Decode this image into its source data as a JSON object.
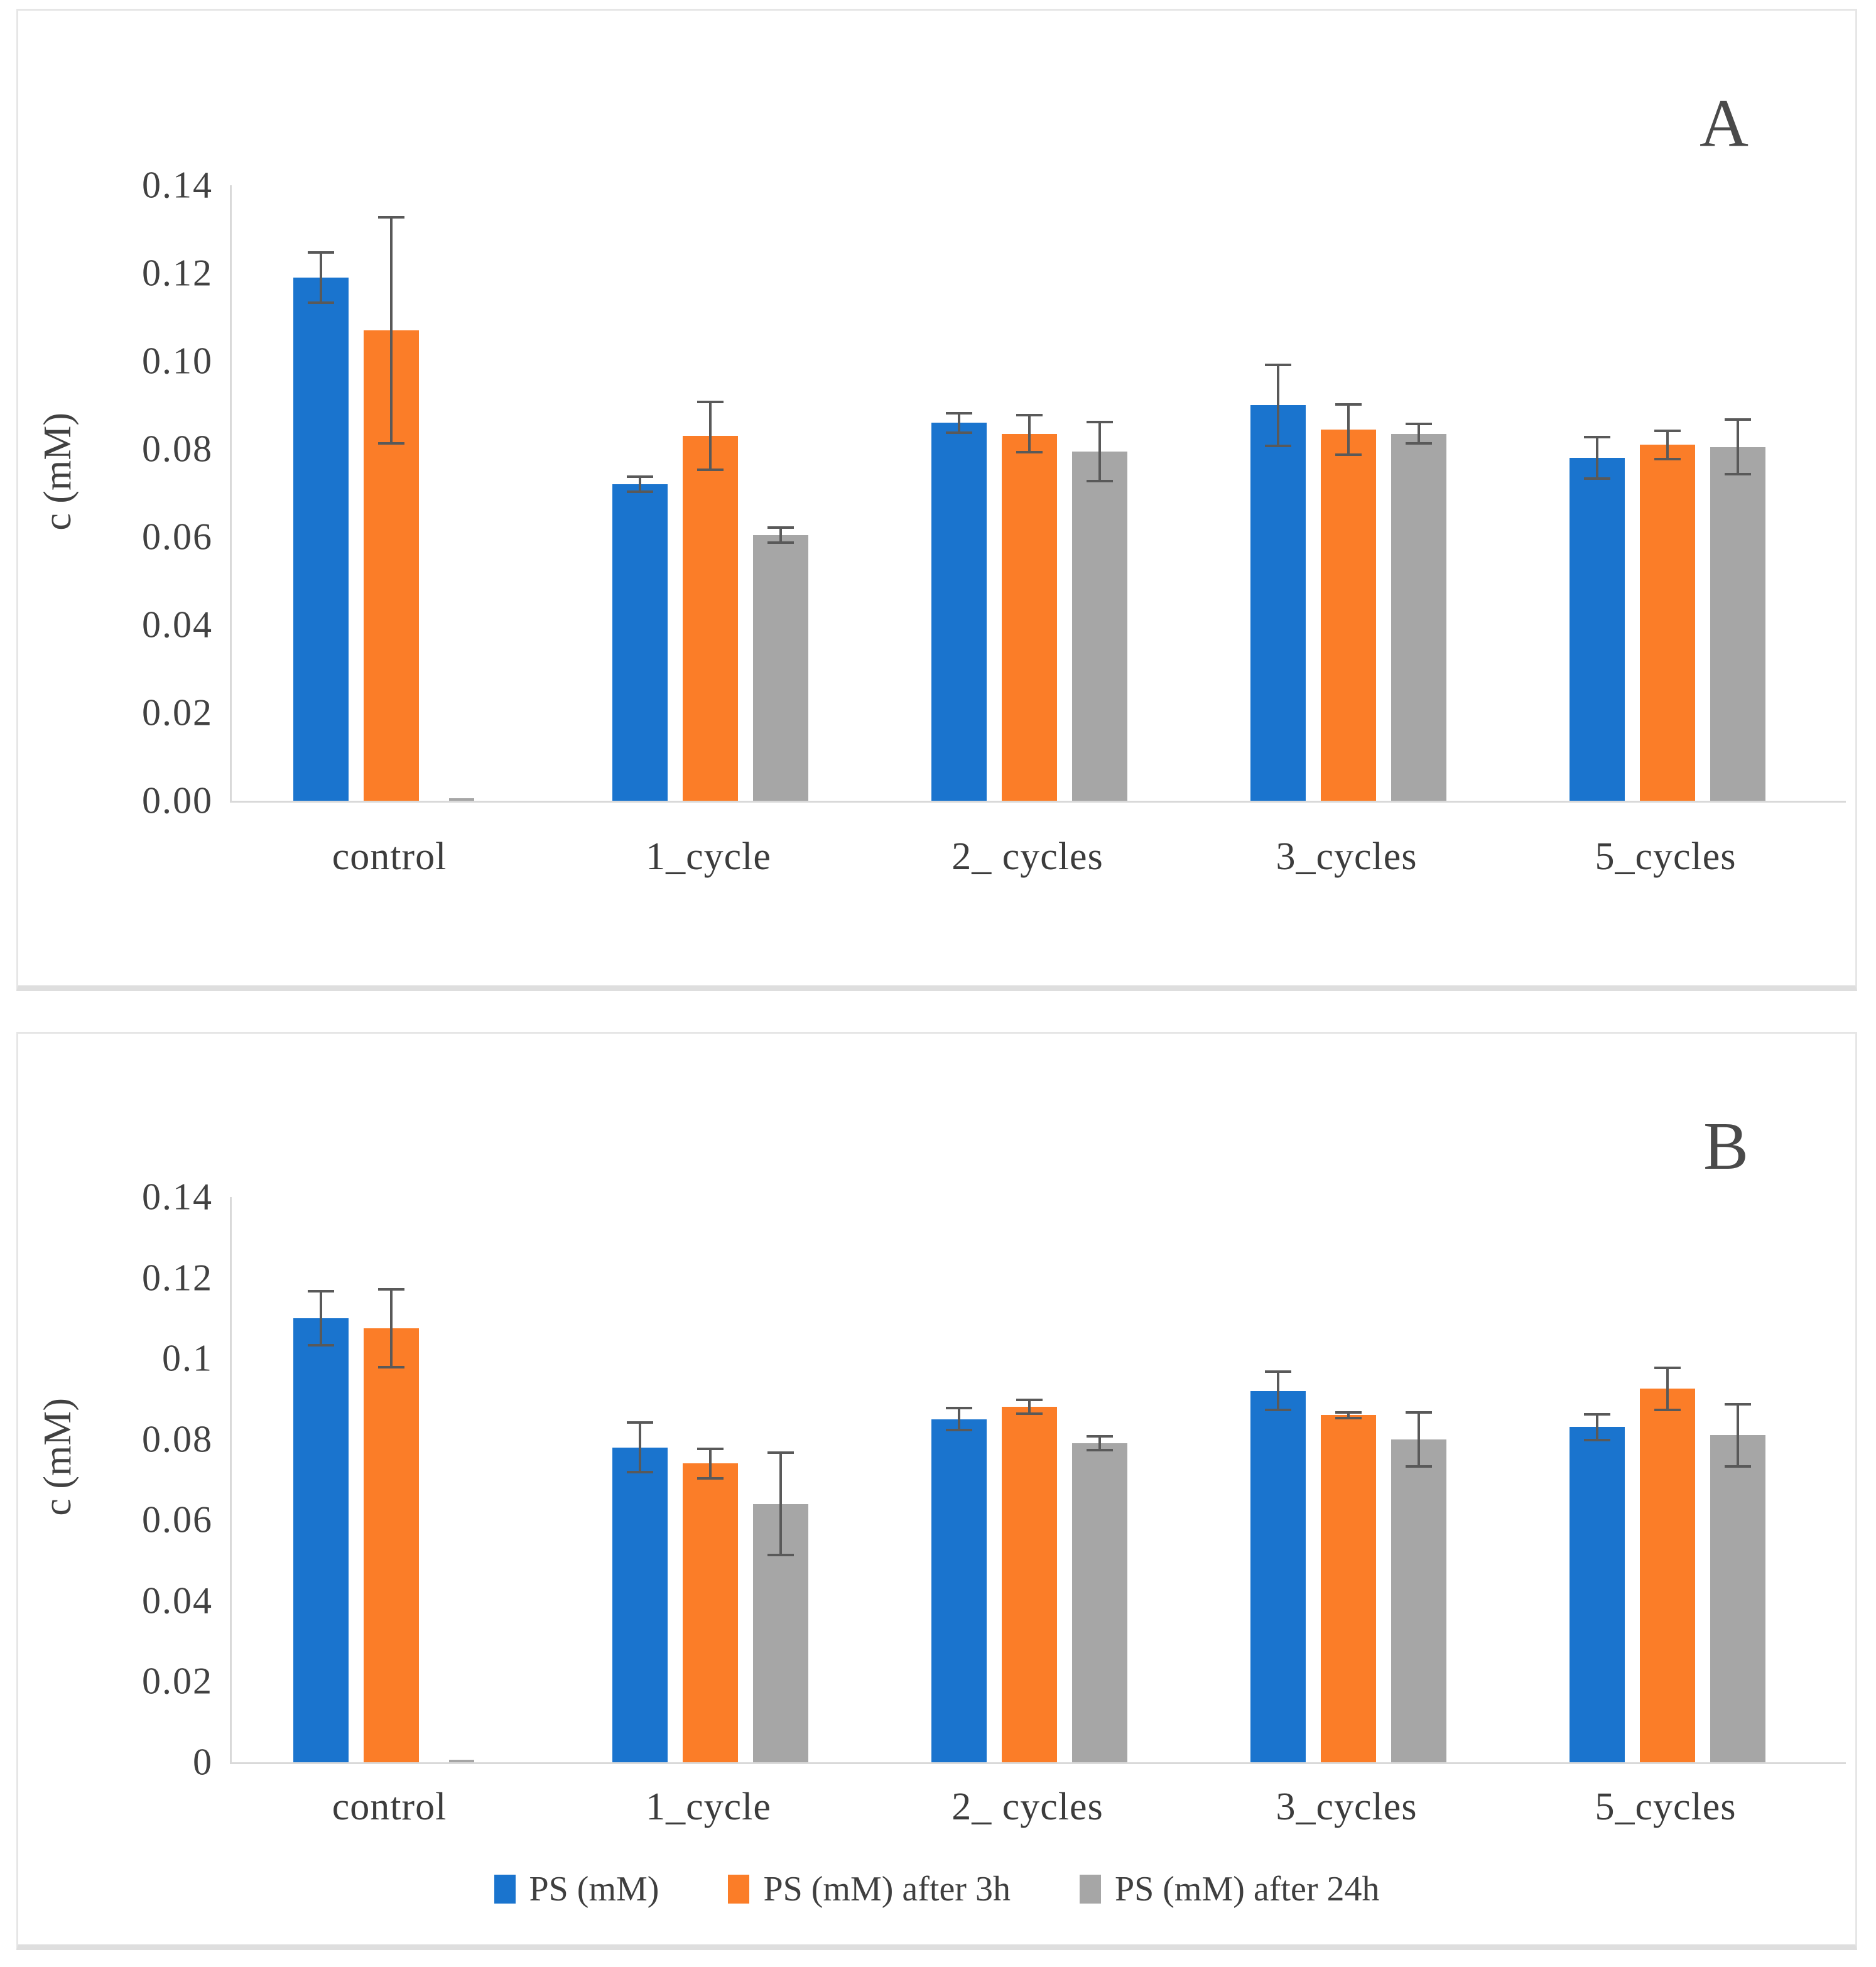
{
  "colors": {
    "series_blue": "#1a74ce",
    "series_orange": "#fb7d28",
    "series_gray": "#a6a6a6",
    "error_bar": "#595959",
    "axis_line": "#d9d9d9",
    "text": "#404040"
  },
  "chart_data": [
    {
      "type": "bar",
      "panel_label": "A",
      "title": "",
      "xlabel": "",
      "ylabel": "c (mM)",
      "ylim": [
        0,
        0.14
      ],
      "grid": false,
      "legend_position": "none",
      "ytick_labels": [
        "0.00",
        "0.02",
        "0.04",
        "0.06",
        "0.08",
        "0.10",
        "0.12",
        "0.14"
      ],
      "ytick_values": [
        0,
        0.02,
        0.04,
        0.06,
        0.08,
        0.1,
        0.12,
        0.14
      ],
      "categories": [
        "control",
        "1_cycle",
        "2_ cycles",
        "3_cycles",
        "5_cycles"
      ],
      "series": [
        {
          "name": "PS (mM)",
          "color": "#1a74ce",
          "values": [
            0.119,
            0.072,
            0.086,
            0.09,
            0.078
          ],
          "errors": [
            0.006,
            0.002,
            0.0025,
            0.0095,
            0.005
          ]
        },
        {
          "name": "PS (mM) after 3h",
          "color": "#fb7d28",
          "values": [
            0.107,
            0.083,
            0.0835,
            0.0845,
            0.081
          ],
          "errors": [
            0.026,
            0.008,
            0.0045,
            0.006,
            0.0035
          ]
        },
        {
          "name": "PS (mM) after 24h",
          "color": "#a6a6a6",
          "values": [
            0.0005,
            0.0605,
            0.0795,
            0.0835,
            0.0805
          ],
          "errors": [
            0,
            0.002,
            0.007,
            0.0025,
            0.0065
          ]
        }
      ]
    },
    {
      "type": "bar",
      "panel_label": "B",
      "title": "",
      "xlabel": "",
      "ylabel": "c (mM)",
      "ylim": [
        0,
        0.14
      ],
      "grid": false,
      "legend_position": "bottom",
      "ytick_labels": [
        "0",
        "0.02",
        "0.04",
        "0.06",
        "0.08",
        "0.1",
        "0.12",
        "0.14"
      ],
      "ytick_values": [
        0,
        0.02,
        0.04,
        0.06,
        0.08,
        0.1,
        0.12,
        0.14
      ],
      "categories": [
        "control",
        "1_cycle",
        "2_ cycles",
        "3_cycles",
        "5_cycles"
      ],
      "series": [
        {
          "name": "PS (mM)",
          "color": "#1a74ce",
          "values": [
            0.11,
            0.078,
            0.085,
            0.092,
            0.083
          ],
          "errors": [
            0.007,
            0.0065,
            0.003,
            0.005,
            0.0035
          ]
        },
        {
          "name": "PS (mM) after 3h",
          "color": "#fb7d28",
          "values": [
            0.1075,
            0.074,
            0.088,
            0.086,
            0.0925
          ],
          "errors": [
            0.01,
            0.004,
            0.002,
            0.001,
            0.0055
          ]
        },
        {
          "name": "PS (mM) after 24h",
          "color": "#a6a6a6",
          "values": [
            0.0005,
            0.064,
            0.079,
            0.08,
            0.081
          ],
          "errors": [
            0,
            0.013,
            0.002,
            0.007,
            0.008
          ]
        }
      ]
    }
  ],
  "legend": {
    "items": [
      "PS (mM)",
      "PS (mM) after 3h",
      "PS (mM) after 24h"
    ]
  }
}
